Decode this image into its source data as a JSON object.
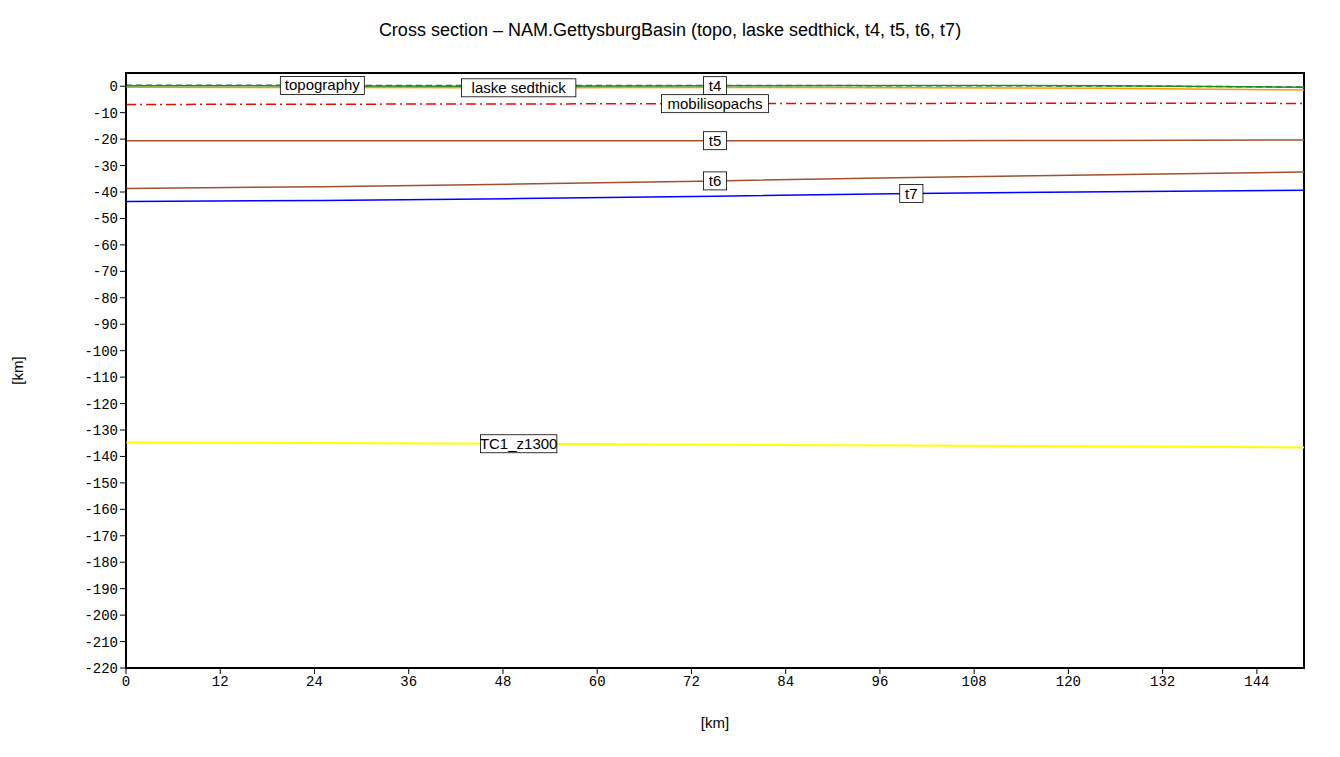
{
  "chart_data": {
    "type": "line",
    "title": "Cross section – NAM.GettysburgBasin (topo, laske sedthick, t4, t5, t6, t7)",
    "x_label": "[km]",
    "y_label": "[km]",
    "x": [
      0,
      25,
      50,
      75,
      100,
      125,
      150
    ],
    "series": [
      {
        "name": "topography",
        "color": "#1f6f3f",
        "line_style": "dashed",
        "values": [
          0.4,
          0.3,
          0.2,
          0.3,
          0.2,
          0.1,
          -0.3
        ]
      },
      {
        "name": "laske sedthick",
        "color": "#ff9900",
        "line_style": "solid",
        "values": [
          -0.4,
          -0.5,
          -0.6,
          -0.5,
          -0.6,
          -0.8,
          -1.4
        ]
      },
      {
        "name": "t4",
        "color": "#228b22",
        "line_style": "solid",
        "values": [
          0.2,
          0.1,
          0.0,
          0.2,
          0.3,
          0.2,
          -0.4
        ]
      },
      {
        "name": "mobilisopachs",
        "color": "#ff0000",
        "line_style": "dashdot",
        "values": [
          -6.9,
          -6.8,
          -6.7,
          -6.6,
          -6.5,
          -6.4,
          -6.5
        ]
      },
      {
        "name": "t5",
        "color": "#a0522d",
        "line_style": "solid",
        "values": [
          -20.6,
          -20.6,
          -20.6,
          -20.6,
          -20.6,
          -20.5,
          -20.3
        ]
      },
      {
        "name": "t6",
        "color": "#a0522d",
        "line_style": "solid",
        "values": [
          -38.7,
          -38,
          -37,
          -35.8,
          -34.5,
          -33.5,
          -32.4
        ]
      },
      {
        "name": "t7",
        "color": "#0000ff",
        "line_style": "solid",
        "values": [
          -43.6,
          -43.2,
          -42.5,
          -41.6,
          -40.6,
          -39.9,
          -39.3
        ]
      },
      {
        "name": "TC1_z1300",
        "color": "#ffff00",
        "line_style": "solid",
        "values": [
          -134.7,
          -134.9,
          -135.2,
          -135.6,
          -135.9,
          -136.2,
          -136.6
        ]
      }
    ],
    "xlim": [
      0,
      150
    ],
    "ylim": [
      -220,
      5
    ],
    "xticks": [
      0,
      12,
      24,
      36,
      48,
      60,
      72,
      84,
      96,
      108,
      120,
      132,
      144
    ],
    "yticks": [
      0,
      -10,
      -20,
      -30,
      -40,
      -50,
      -60,
      -70,
      -80,
      -90,
      -100,
      -110,
      -120,
      -130,
      -140,
      -150,
      -160,
      -170,
      -180,
      -190,
      -200,
      -210,
      -220
    ],
    "grid": false
  }
}
